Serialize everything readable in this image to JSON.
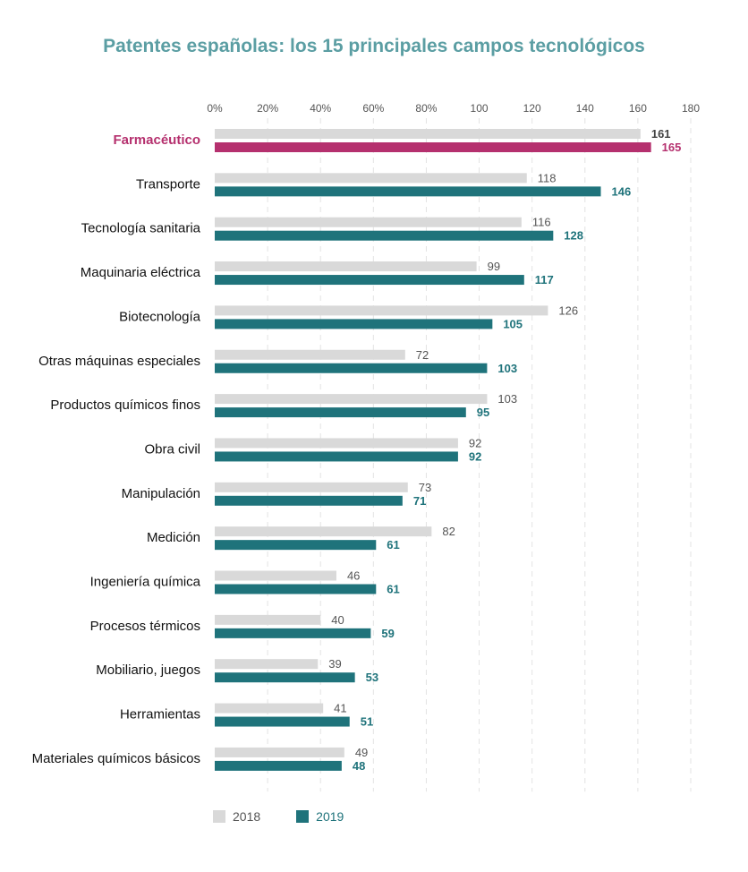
{
  "chart_data": {
    "type": "bar",
    "orientation": "horizontal",
    "title": "Patentes españolas: los 15 principales campos tecnológicos",
    "categories": [
      "Farmacéutico",
      "Transporte",
      "Tecnología sanitaria",
      "Maquinaria eléctrica",
      "Biotecnología",
      "Otras máquinas especiales",
      "Productos químicos finos",
      "Obra civil",
      "Manipulación",
      "Medición",
      "Ingeniería química",
      "Procesos térmicos",
      "Mobiliario, juegos",
      "Herramientas",
      "Materiales químicos básicos"
    ],
    "highlight_category": "Farmacéutico",
    "series": [
      {
        "name": "2018",
        "values": [
          161,
          118,
          116,
          99,
          126,
          72,
          103,
          92,
          73,
          82,
          46,
          40,
          39,
          41,
          49
        ],
        "color": "#d9d9d9",
        "label_color": "#555555"
      },
      {
        "name": "2019",
        "values": [
          165,
          146,
          128,
          117,
          105,
          103,
          95,
          92,
          71,
          61,
          61,
          59,
          53,
          51,
          48
        ],
        "color": "#1f737b",
        "label_color": "#1f737b"
      }
    ],
    "highlight_color": "#b5306e",
    "x_ticks": [
      "0%",
      "20%",
      "40%",
      "60%",
      "80%",
      "100",
      "120",
      "140",
      "160",
      "180"
    ],
    "xlim": [
      0,
      180
    ],
    "x_axis_position": "top",
    "grid": true,
    "legend_position": "bottom-left"
  }
}
